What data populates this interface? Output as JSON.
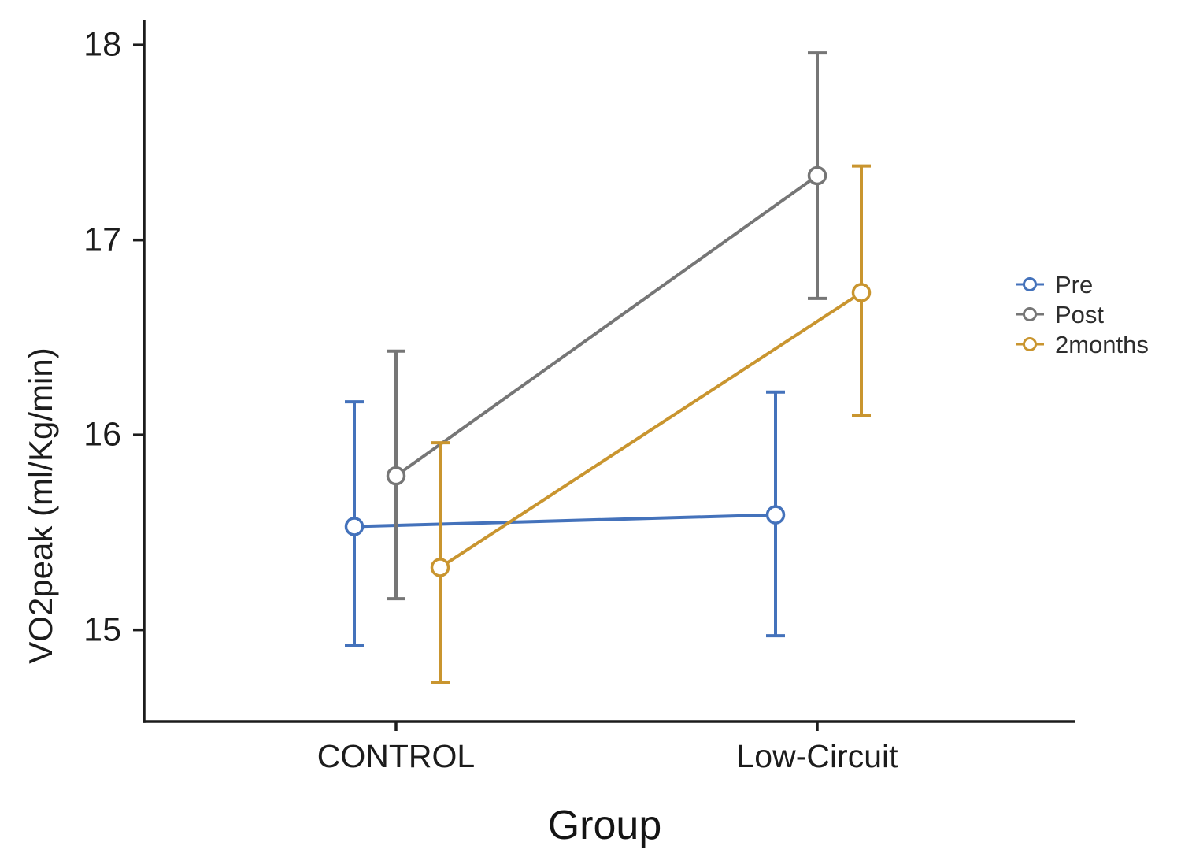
{
  "chart_data": {
    "type": "line",
    "title": "",
    "xlabel": "Group",
    "ylabel": "VO2peak (ml/Kg/min)",
    "categories": [
      "CONTROL",
      "Low-Circuit"
    ],
    "yticks": [
      15,
      16,
      17,
      18
    ],
    "ytick_labels": [
      "15",
      "16",
      "17",
      "18"
    ],
    "ylim": [
      14.53,
      18.13
    ],
    "grid": false,
    "legend_position": "right",
    "marker_style": "open-circle",
    "error_bars": true,
    "background_color": "#ffffff",
    "axis_color": "#1c1c1c",
    "series": [
      {
        "name": "Pre",
        "color": "#4472bb",
        "means": [
          15.53,
          15.59
        ],
        "ci_low": [
          14.92,
          14.97
        ],
        "ci_high": [
          16.17,
          16.22
        ]
      },
      {
        "name": "Post",
        "color": "#767676",
        "means": [
          15.79,
          17.33
        ],
        "ci_low": [
          15.16,
          16.7
        ],
        "ci_high": [
          16.43,
          17.96
        ]
      },
      {
        "name": "2months",
        "color": "#c9952f",
        "means": [
          15.32,
          16.73
        ],
        "ci_low": [
          14.73,
          16.1
        ],
        "ci_high": [
          15.96,
          17.38
        ]
      }
    ]
  }
}
